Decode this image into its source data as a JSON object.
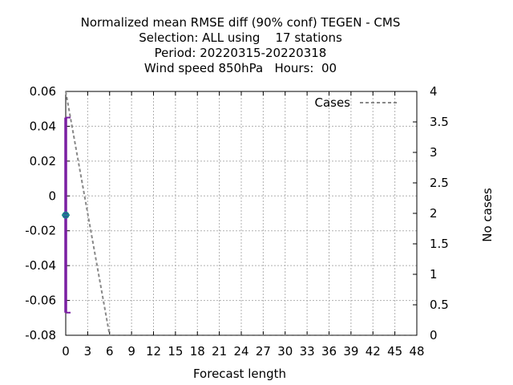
{
  "title_lines": [
    "Normalized mean RMSE diff (90% conf) TEGEN - CMS",
    "Selection: ALL using    17 stations",
    "Period: 20220315-20220318",
    "Wind speed 850hPa   Hours:  00"
  ],
  "chart_data": {
    "type": "line",
    "xlabel": "Forecast length",
    "ylabel": "",
    "y2label": "No cases",
    "xlim": [
      0,
      48
    ],
    "ylim": [
      -0.08,
      0.06
    ],
    "y2lim": [
      0,
      4
    ],
    "x_ticks": [
      "0",
      "3",
      "6",
      "9",
      "12",
      "15",
      "18",
      "21",
      "24",
      "27",
      "30",
      "33",
      "36",
      "39",
      "42",
      "45",
      "48"
    ],
    "y_ticks": [
      "0.06",
      "0.04",
      "0.02",
      "0",
      "-0.02",
      "-0.04",
      "-0.06",
      "-0.08"
    ],
    "y2_ticks": [
      "4",
      "3.5",
      "3",
      "2.5",
      "2",
      "1.5",
      "1",
      "0.5",
      "0"
    ],
    "grid": true,
    "legend": "top-right",
    "series": [
      {
        "name": "Cases",
        "axis": "right",
        "style": "dashed",
        "color": "#888888",
        "x": [
          0,
          6,
          12,
          18,
          24,
          30,
          36,
          42,
          48
        ],
        "y": [
          4,
          0,
          0,
          0,
          0,
          0,
          0,
          0,
          0
        ]
      },
      {
        "axis": "left",
        "style": "errorbar",
        "color": "#7a1fa2",
        "marker_color": "#2a5a9a",
        "x": [
          0
        ],
        "y": [
          -0.011
        ],
        "low": [
          -0.067
        ],
        "high": [
          0.045
        ]
      }
    ]
  }
}
